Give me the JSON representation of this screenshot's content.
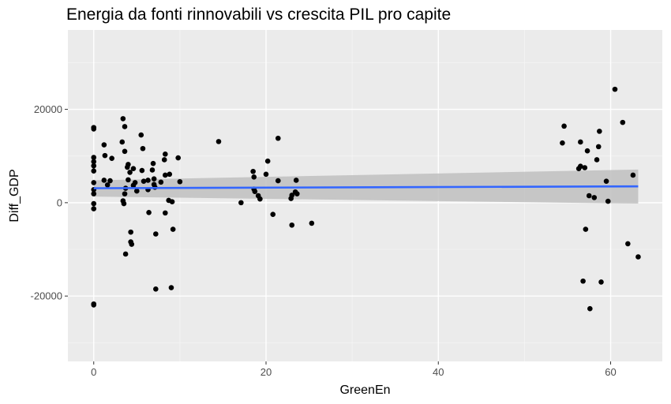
{
  "chart_data": {
    "type": "scatter",
    "title": "Energia da fonti rinnovabili vs crescita PIL pro capite",
    "xlabel": "GreenEn",
    "ylabel": "Diff_GDP",
    "xlim": [
      -3,
      66
    ],
    "ylim": [
      -34000,
      37000
    ],
    "x_ticks": [
      0,
      20,
      40,
      60
    ],
    "x_tick_labels": [
      "0",
      "20",
      "40",
      "60"
    ],
    "y_ticks": [
      -20000,
      0,
      20000
    ],
    "y_tick_labels": [
      "-20000",
      "0",
      "20000"
    ],
    "grid": true,
    "panel_background": "#ebebeb",
    "point_color": "#000000",
    "smooth_line_color": "#3366ff",
    "ribbon_color": "#c0c0c0",
    "points": [
      {
        "x": 0,
        "y": 15800
      },
      {
        "x": 0,
        "y": 16100
      },
      {
        "x": 0,
        "y": 9700
      },
      {
        "x": 0,
        "y": 8800
      },
      {
        "x": 0,
        "y": 7900
      },
      {
        "x": 0,
        "y": 6800
      },
      {
        "x": 0,
        "y": 4300
      },
      {
        "x": 0,
        "y": 2800
      },
      {
        "x": 0,
        "y": 1900
      },
      {
        "x": 0,
        "y": -200
      },
      {
        "x": 0,
        "y": -1300
      },
      {
        "x": 0,
        "y": -21700
      },
      {
        "x": 0,
        "y": -21900
      },
      {
        "x": 1.2,
        "y": 12400
      },
      {
        "x": 1.3,
        "y": 10100
      },
      {
        "x": 1.2,
        "y": 4800
      },
      {
        "x": 1.6,
        "y": 3800
      },
      {
        "x": 1.9,
        "y": 4700
      },
      {
        "x": 2.1,
        "y": 9500
      },
      {
        "x": 3.3,
        "y": 13000
      },
      {
        "x": 3.4,
        "y": 18000
      },
      {
        "x": 3.6,
        "y": 16300
      },
      {
        "x": 3.6,
        "y": 11000
      },
      {
        "x": 3.4,
        "y": 400
      },
      {
        "x": 3.5,
        "y": -200
      },
      {
        "x": 3.6,
        "y": 1900
      },
      {
        "x": 3.7,
        "y": 3100
      },
      {
        "x": 3.7,
        "y": -11000
      },
      {
        "x": 3.9,
        "y": 7600
      },
      {
        "x": 4.0,
        "y": 8200
      },
      {
        "x": 4.0,
        "y": 4900
      },
      {
        "x": 4.2,
        "y": 6500
      },
      {
        "x": 4.3,
        "y": -6300
      },
      {
        "x": 4.3,
        "y": -8400
      },
      {
        "x": 4.4,
        "y": -8900
      },
      {
        "x": 4.6,
        "y": 7300
      },
      {
        "x": 4.6,
        "y": 3700
      },
      {
        "x": 4.8,
        "y": 4300
      },
      {
        "x": 5.0,
        "y": 2500
      },
      {
        "x": 5.5,
        "y": 14500
      },
      {
        "x": 5.6,
        "y": 6900
      },
      {
        "x": 5.7,
        "y": 11600
      },
      {
        "x": 5.8,
        "y": 4600
      },
      {
        "x": 6.3,
        "y": 4800
      },
      {
        "x": 6.3,
        "y": 2800
      },
      {
        "x": 6.4,
        "y": -2100
      },
      {
        "x": 6.8,
        "y": 7000
      },
      {
        "x": 6.9,
        "y": 8400
      },
      {
        "x": 7.0,
        "y": 5100
      },
      {
        "x": 7.0,
        "y": 3900
      },
      {
        "x": 7.1,
        "y": 3300
      },
      {
        "x": 7.2,
        "y": -18500
      },
      {
        "x": 7.2,
        "y": -6700
      },
      {
        "x": 7.8,
        "y": 4400
      },
      {
        "x": 8.2,
        "y": 9200
      },
      {
        "x": 8.3,
        "y": 10400
      },
      {
        "x": 8.3,
        "y": 5900
      },
      {
        "x": 8.3,
        "y": -2200
      },
      {
        "x": 8.7,
        "y": 500
      },
      {
        "x": 8.8,
        "y": 6100
      },
      {
        "x": 9.1,
        "y": 200
      },
      {
        "x": 9.2,
        "y": -5700
      },
      {
        "x": 9.0,
        "y": -18200
      },
      {
        "x": 9.8,
        "y": 9600
      },
      {
        "x": 10.0,
        "y": 4500
      },
      {
        "x": 14.5,
        "y": 13100
      },
      {
        "x": 17.1,
        "y": 0
      },
      {
        "x": 18.5,
        "y": 6700
      },
      {
        "x": 18.6,
        "y": 5500
      },
      {
        "x": 18.6,
        "y": 2900
      },
      {
        "x": 18.7,
        "y": 2400
      },
      {
        "x": 19.1,
        "y": 1500
      },
      {
        "x": 19.3,
        "y": 800
      },
      {
        "x": 20.0,
        "y": 6100
      },
      {
        "x": 20.2,
        "y": 8900
      },
      {
        "x": 20.8,
        "y": -2500
      },
      {
        "x": 21.4,
        "y": 13800
      },
      {
        "x": 21.4,
        "y": 4700
      },
      {
        "x": 22.9,
        "y": 900
      },
      {
        "x": 23.0,
        "y": 1600
      },
      {
        "x": 23.0,
        "y": -4800
      },
      {
        "x": 23.4,
        "y": 2300
      },
      {
        "x": 23.5,
        "y": 4800
      },
      {
        "x": 23.6,
        "y": 1900
      },
      {
        "x": 25.3,
        "y": -4400
      },
      {
        "x": 54.4,
        "y": 12800
      },
      {
        "x": 54.6,
        "y": 16400
      },
      {
        "x": 56.3,
        "y": 7300
      },
      {
        "x": 56.5,
        "y": 7800
      },
      {
        "x": 56.5,
        "y": 13000
      },
      {
        "x": 56.8,
        "y": -16800
      },
      {
        "x": 57.0,
        "y": 7500
      },
      {
        "x": 57.1,
        "y": -5700
      },
      {
        "x": 57.3,
        "y": 11100
      },
      {
        "x": 57.5,
        "y": 1500
      },
      {
        "x": 57.6,
        "y": -22700
      },
      {
        "x": 58.1,
        "y": 1100
      },
      {
        "x": 58.4,
        "y": 9200
      },
      {
        "x": 58.6,
        "y": 12000
      },
      {
        "x": 58.7,
        "y": 15300
      },
      {
        "x": 58.9,
        "y": -17000
      },
      {
        "x": 59.5,
        "y": 4600
      },
      {
        "x": 59.7,
        "y": 300
      },
      {
        "x": 60.5,
        "y": 24300
      },
      {
        "x": 61.4,
        "y": 17200
      },
      {
        "x": 62.0,
        "y": -8800
      },
      {
        "x": 62.6,
        "y": 5900
      },
      {
        "x": 63.2,
        "y": -11600
      }
    ],
    "smooth": {
      "method": "lm",
      "x": [
        0,
        63.2
      ],
      "y": [
        3100,
        3500
      ],
      "ci_lower": [
        1300,
        -200
      ],
      "ci_upper": [
        4800,
        7100
      ]
    }
  }
}
